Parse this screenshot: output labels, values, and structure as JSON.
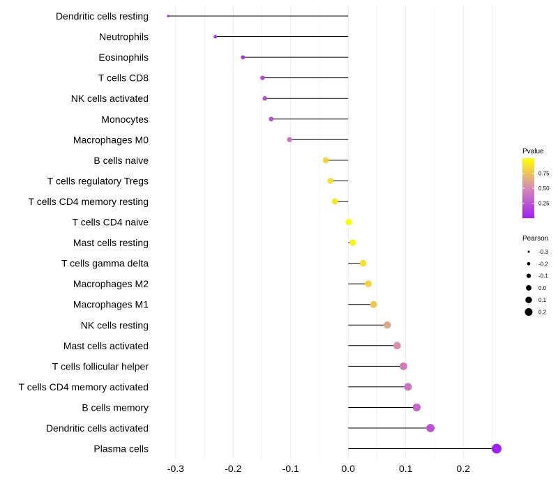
{
  "chart_data": {
    "type": "lollipop",
    "categories": [
      "Dendritic cells resting",
      "Neutrophils",
      "Eosinophils",
      "T cells CD8",
      "NK cells activated",
      "Monocytes",
      "Macrophages M0",
      "B cells naive",
      "T cells regulatory  Tregs ",
      "T cells CD4 memory resting",
      "T cells CD4 naive",
      "Mast cells resting",
      "T cells gamma delta",
      "Macrophages M2",
      "Macrophages M1",
      "NK cells resting",
      "Mast cells activated",
      "T cells follicular helper",
      "T cells CD4 memory activated",
      "B cells memory",
      "Dendritic cells activated",
      "Plasma cells"
    ],
    "pearson": [
      -0.313,
      -0.231,
      -0.183,
      -0.149,
      -0.145,
      -0.134,
      -0.102,
      -0.039,
      -0.031,
      -0.023,
      0.001,
      0.008,
      0.026,
      0.035,
      0.044,
      0.068,
      0.085,
      0.096,
      0.104,
      0.119,
      0.143,
      0.258
    ],
    "pvalue": [
      0.01,
      0.04,
      0.1,
      0.18,
      0.2,
      0.23,
      0.4,
      0.82,
      0.86,
      0.9,
      0.99,
      0.95,
      0.87,
      0.82,
      0.76,
      0.62,
      0.52,
      0.44,
      0.4,
      0.34,
      0.24,
      0.0
    ],
    "xlim": [
      -0.335,
      0.275
    ],
    "xticks": [
      -0.3,
      -0.2,
      -0.1,
      0.0,
      0.1,
      0.2
    ],
    "xtick_labels": [
      "-0.3",
      "-0.2",
      "-0.1",
      "0.0",
      "0.1",
      "0.2"
    ],
    "grid": true,
    "legend_placement": "right",
    "color_legend": {
      "title": "Pvalue",
      "ticks": [
        0.25,
        0.5,
        0.75
      ],
      "tick_labels": [
        "0.25",
        "0.50",
        "0.75"
      ],
      "low_color": "#a020f0",
      "mid_color": "#d58bb4",
      "high_color": "#ffff00",
      "range": [
        0.0,
        1.0
      ]
    },
    "size_legend": {
      "title": "Pearson",
      "values": [
        -0.3,
        -0.2,
        -0.1,
        0.0,
        0.1,
        0.2
      ],
      "labels": [
        "-0.3",
        "-0.2",
        "-0.1",
        "0.0",
        "0.1",
        "0.2"
      ]
    },
    "stem_color": "#000000",
    "grid_color": "#ebebeb"
  }
}
